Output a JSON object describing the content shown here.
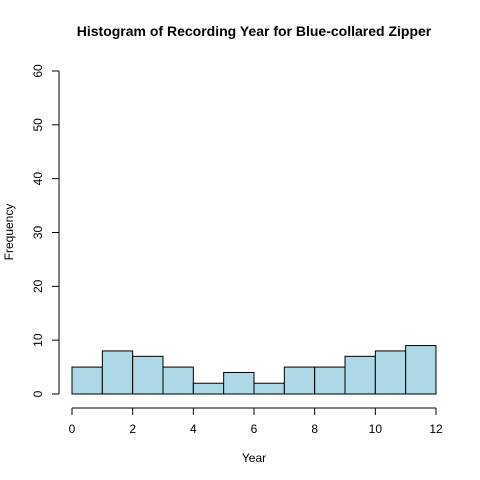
{
  "chart_data": {
    "type": "bar",
    "title": "Histogram of Recording Year for Blue-collared Zipper",
    "xlabel": "Year",
    "ylabel": "Frequency",
    "bins": [
      [
        0,
        1
      ],
      [
        1,
        2
      ],
      [
        2,
        3
      ],
      [
        3,
        4
      ],
      [
        4,
        5
      ],
      [
        5,
        6
      ],
      [
        6,
        7
      ],
      [
        7,
        8
      ],
      [
        8,
        9
      ],
      [
        9,
        10
      ],
      [
        10,
        11
      ],
      [
        11,
        12
      ]
    ],
    "values": [
      5,
      8,
      7,
      5,
      2,
      4,
      2,
      5,
      5,
      7,
      8,
      9
    ],
    "xlim": [
      0,
      12
    ],
    "ylim": [
      0,
      60
    ],
    "x_ticks": [
      "0",
      "2",
      "4",
      "6",
      "8",
      "10",
      "12"
    ],
    "y_ticks": [
      "0",
      "10",
      "20",
      "30",
      "40",
      "50",
      "60"
    ],
    "bar_color": "#add8e6",
    "grid": false
  }
}
